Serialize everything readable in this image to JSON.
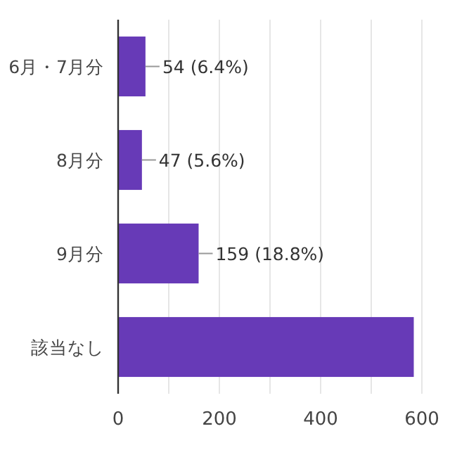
{
  "chart_data": {
    "type": "bar",
    "orientation": "horizontal",
    "categories": [
      "6月・7月分",
      "8月分",
      "9月分",
      "該当なし"
    ],
    "values": [
      54,
      47,
      159,
      584
    ],
    "value_labels": [
      "54 (6.4%)",
      "47 (5.6%)",
      "159 (18.8%)",
      null
    ],
    "color": "#673ab7",
    "xlim": [
      0,
      600
    ],
    "xticks": [
      0,
      {
        "value": 100,
        "label": null
      },
      200,
      {
        "value": 300,
        "label": null
      },
      400,
      {
        "value": 500,
        "label": null
      },
      600
    ],
    "grid": "x"
  }
}
